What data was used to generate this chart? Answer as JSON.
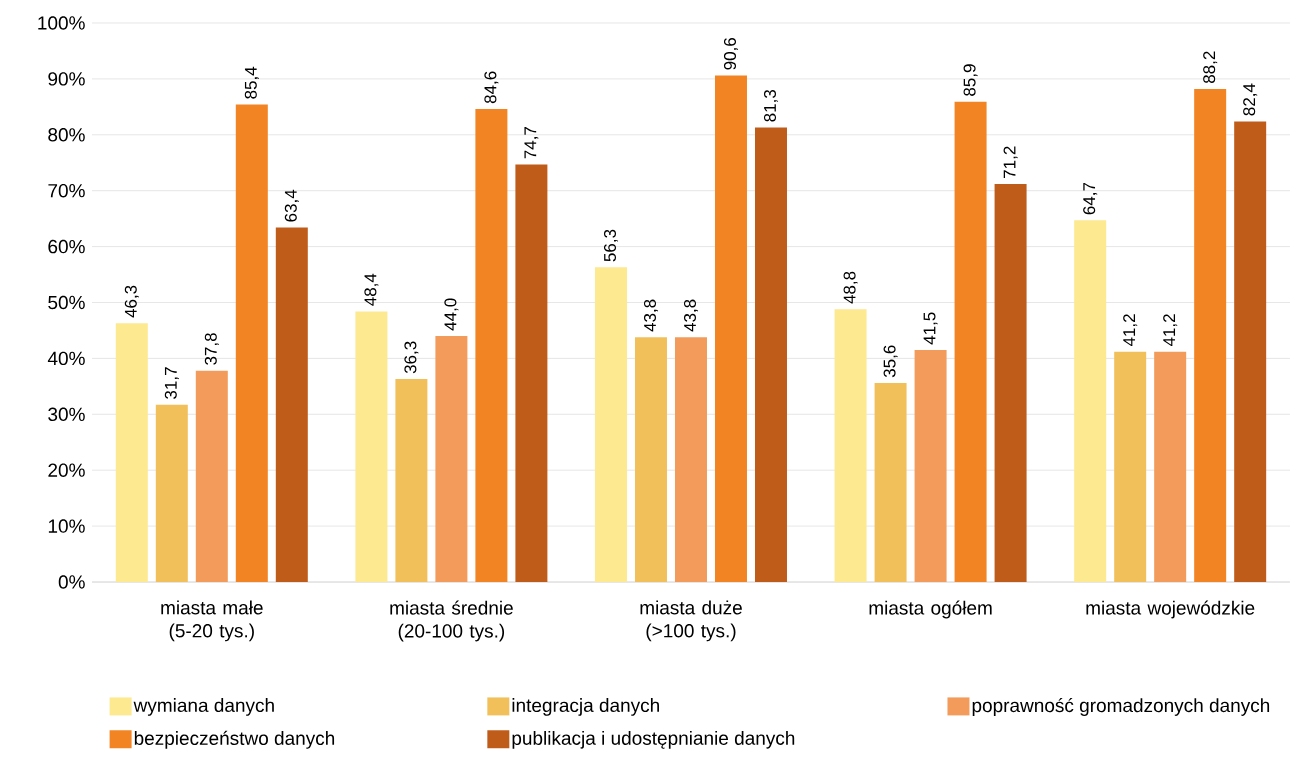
{
  "chart_data": {
    "type": "bar",
    "categories": [
      "miasta małe (5-20 tys.)",
      "miasta średnie (20-100 tys.)",
      "miasta duże (>100 tys.)",
      "miasta ogółem",
      "miasta wojewódzkie"
    ],
    "series": [
      {
        "name": "wymiana danych",
        "color": "#fde98f",
        "values": [
          46.3,
          48.4,
          56.3,
          48.8,
          64.7
        ],
        "value_labels": [
          "46,3",
          "48,4",
          "56,3",
          "48,8",
          "64,7"
        ]
      },
      {
        "name": "integracja danych",
        "color": "#f2c05b",
        "values": [
          31.7,
          36.3,
          43.8,
          35.6,
          41.2
        ],
        "value_labels": [
          "31,7",
          "36,3",
          "43,8",
          "35,6",
          "41,2"
        ]
      },
      {
        "name": "poprawność gromadzonych danych",
        "color": "#f29b5a",
        "values": [
          37.8,
          44.0,
          43.8,
          41.5,
          41.2
        ],
        "value_labels": [
          "37,8",
          "44,0",
          "43,8",
          "41,5",
          "41,2"
        ]
      },
      {
        "name": "bezpieczeństwo danych",
        "color": "#f28424",
        "values": [
          85.4,
          84.6,
          90.6,
          85.9,
          88.2
        ],
        "value_labels": [
          "85,4",
          "84,6",
          "90,6",
          "85,9",
          "88,2"
        ]
      },
      {
        "name": "publikacja i udostępnianie danych",
        "color": "#c05c1a",
        "values": [
          63.4,
          74.7,
          81.3,
          71.2,
          82.4
        ],
        "value_labels": [
          "63,4",
          "74,7",
          "81,3",
          "71,2",
          "82,4"
        ]
      }
    ],
    "ylim": [
      0,
      100
    ],
    "yticks": [
      {
        "value": 0,
        "label": "0%"
      },
      {
        "value": 10,
        "label": "10%"
      },
      {
        "value": 20,
        "label": "20%"
      },
      {
        "value": 30,
        "label": "30%"
      },
      {
        "value": 40,
        "label": "40%"
      },
      {
        "value": 50,
        "label": "50%"
      },
      {
        "value": 60,
        "label": "60%"
      },
      {
        "value": 70,
        "label": "70%"
      },
      {
        "value": 80,
        "label": "80%"
      },
      {
        "value": 90,
        "label": "90%"
      },
      {
        "value": 100,
        "label": "100%"
      }
    ],
    "grid": "y",
    "legend": "bottom"
  }
}
